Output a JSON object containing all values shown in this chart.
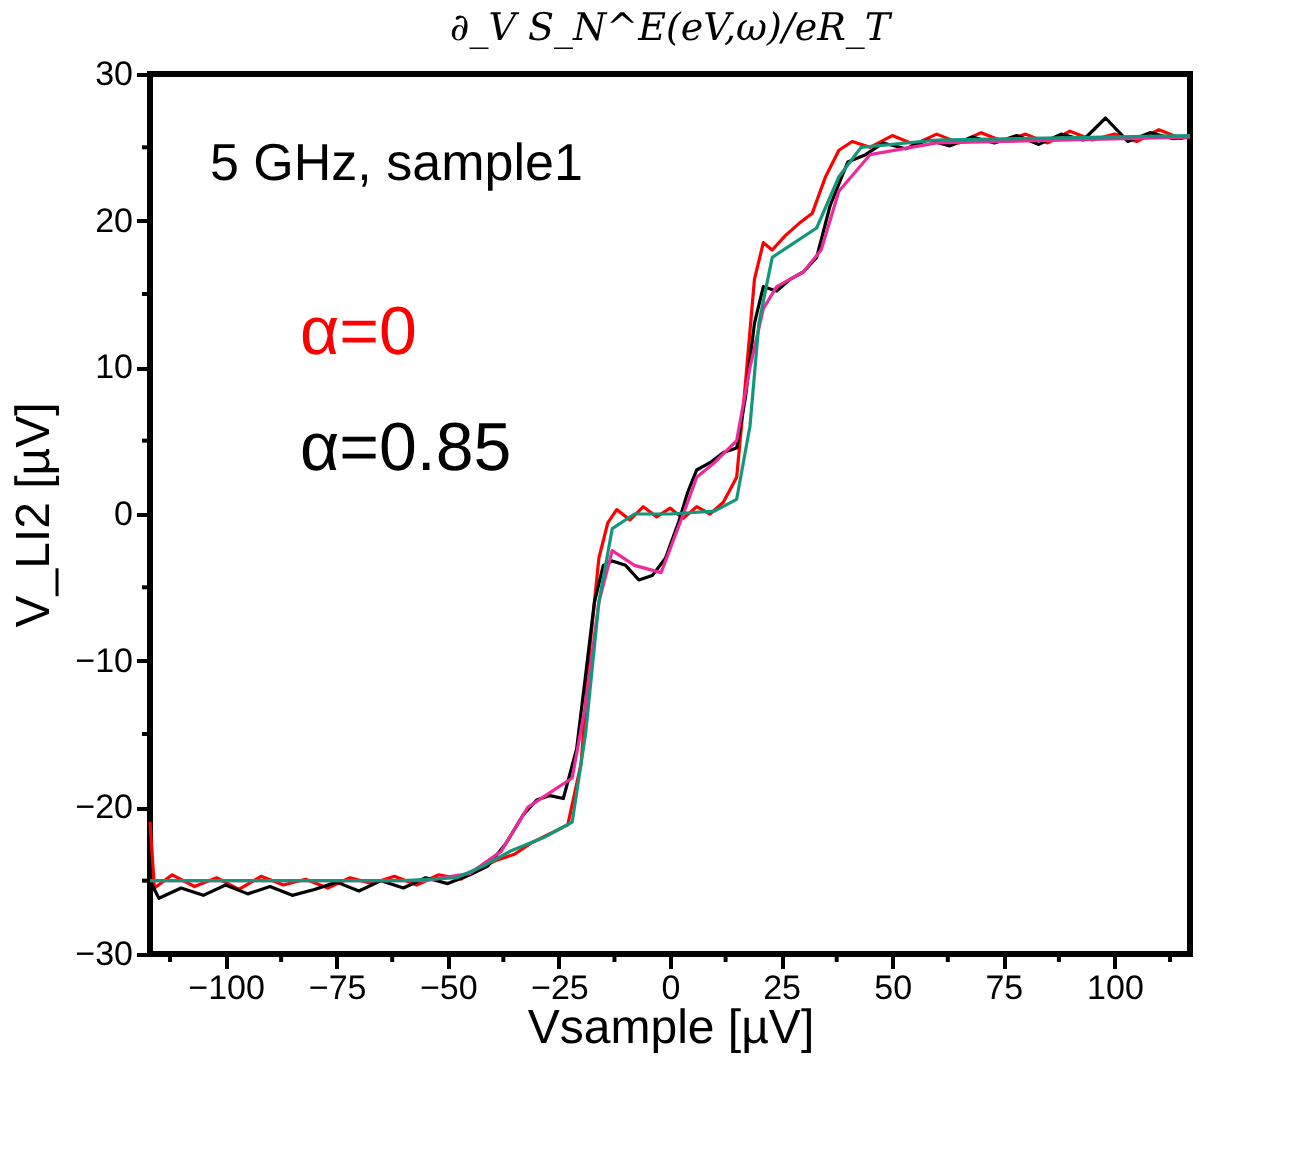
{
  "chart_data": {
    "type": "line",
    "title": "∂_V S_N^E(eV,ω)/eR_T",
    "xlabel": "Vsample [µV]",
    "ylabel": "V_LI2 [µV]",
    "annotations": [
      "5 GHz, sample1"
    ],
    "legend": "top left",
    "grid": false,
    "marker": "none",
    "line_style": "solid",
    "xlim": [
      -117,
      117
    ],
    "ylim": [
      -30,
      30
    ],
    "xticks": [
      {
        "value": -112.5,
        "label": null
      },
      -100,
      {
        "value": -87.5,
        "label": null
      },
      -75,
      {
        "value": -62.5,
        "label": null
      },
      -50,
      {
        "value": -37.5,
        "label": null
      },
      -25,
      {
        "value": -12.5,
        "label": null
      },
      0,
      {
        "value": 12.5,
        "label": null
      },
      25,
      {
        "value": 37.5,
        "label": null
      },
      50,
      {
        "value": 62.5,
        "label": null
      },
      75,
      {
        "value": 87.5,
        "label": null
      },
      100,
      {
        "value": 112.5,
        "label": null
      }
    ],
    "yticks": [
      -30,
      {
        "value": -25,
        "label": null
      },
      -20,
      {
        "value": -15,
        "label": null
      },
      -10,
      {
        "value": -5,
        "label": null
      },
      0,
      {
        "value": 5,
        "label": null
      },
      10,
      {
        "value": 15,
        "label": null
      },
      20,
      {
        "value": 25,
        "label": null
      },
      30
    ],
    "series": [
      {
        "name": "α=0",
        "color": "#ff0000",
        "x": [
          -117,
          -116,
          -112,
          -107,
          -102,
          -97,
          -92,
          -87,
          -82,
          -77,
          -72,
          -67,
          -62,
          -57,
          -52,
          -47,
          -43,
          -39,
          -35,
          -31,
          -27,
          -23,
          -20,
          -18,
          -16,
          -14,
          -12,
          -9,
          -6,
          -3,
          0,
          3,
          6,
          9,
          12,
          15,
          17,
          19,
          21,
          23,
          26,
          29,
          32,
          35,
          38,
          41,
          45,
          50,
          55,
          60,
          65,
          70,
          75,
          80,
          85,
          90,
          95,
          100,
          105,
          110,
          115,
          117
        ],
        "values": [
          -21,
          -25.5,
          -24.6,
          -25.4,
          -24.8,
          -25.6,
          -24.7,
          -25.3,
          -24.9,
          -25.5,
          -24.8,
          -25.2,
          -24.7,
          -25.3,
          -24.6,
          -24.9,
          -24.2,
          -23.6,
          -23.2,
          -22.4,
          -21.8,
          -21.2,
          -17,
          -9,
          -3,
          -0.6,
          0.3,
          -0.4,
          0.5,
          -0.2,
          0.4,
          -0.3,
          0.5,
          0,
          0.8,
          2.5,
          9,
          16,
          18.5,
          18,
          19,
          19.8,
          20.5,
          23,
          24.8,
          25.4,
          25,
          25.8,
          25.2,
          25.9,
          25.3,
          26,
          25.4,
          25.9,
          25.3,
          26.1,
          25.5,
          25.9,
          25.4,
          26.2,
          25.6,
          25.8
        ]
      },
      {
        "name": "α=0.85",
        "color": "#000000",
        "x": [
          -117,
          -115,
          -110,
          -105,
          -100,
          -95,
          -90,
          -85,
          -80,
          -75,
          -70,
          -65,
          -60,
          -55,
          -50,
          -45,
          -41,
          -37,
          -33,
          -30,
          -27,
          -24,
          -21,
          -19,
          -17,
          -15,
          -13,
          -10,
          -7,
          -4,
          -1,
          2,
          4,
          6,
          9,
          12,
          15,
          17,
          19,
          21,
          24,
          27,
          30,
          33,
          36,
          40,
          44,
          48,
          53,
          58,
          63,
          68,
          73,
          78,
          83,
          88,
          93,
          98,
          103,
          108,
          113,
          117
        ],
        "values": [
          -25,
          -26.2,
          -25.5,
          -26,
          -25.3,
          -25.9,
          -25.4,
          -26,
          -25.6,
          -25.1,
          -25.7,
          -25,
          -25.5,
          -24.8,
          -25.2,
          -24.6,
          -24,
          -22.5,
          -20.5,
          -19.5,
          -19.2,
          -19.4,
          -16,
          -11,
          -6,
          -3.5,
          -3.2,
          -3.5,
          -4.5,
          -4.2,
          -3,
          -0.5,
          1.5,
          3,
          3.5,
          4.2,
          4.5,
          8,
          13,
          15.5,
          15.2,
          16,
          16.5,
          17.5,
          21,
          24,
          24.5,
          25.3,
          24.9,
          25.5,
          25.1,
          25.7,
          25.3,
          25.8,
          25.2,
          25.9,
          25.5,
          27,
          25.4,
          26,
          25.6,
          25.7
        ]
      },
      {
        "color": "#ee2a9a",
        "x": [
          -117,
          -55,
          -45,
          -38,
          -32,
          -27,
          -22,
          -19,
          -16,
          -13,
          -8,
          -2,
          3,
          6,
          10,
          15,
          18,
          21,
          24,
          30,
          34,
          38,
          45,
          60,
          117
        ],
        "values": [
          -25,
          -25,
          -24.5,
          -23,
          -20,
          -19,
          -18,
          -13,
          -6,
          -2.5,
          -3.5,
          -4,
          0,
          2.5,
          3.5,
          5,
          10,
          14,
          15.5,
          16.5,
          18,
          22,
          24.5,
          25.3,
          25.7
        ]
      },
      {
        "color": "#13977a",
        "x": [
          -117,
          -60,
          -48,
          -42,
          -36,
          -28,
          -22,
          -19,
          -16,
          -13,
          -8,
          0,
          10,
          15,
          18,
          20,
          23,
          28,
          33,
          38,
          43,
          60,
          117
        ],
        "values": [
          -25,
          -25,
          -24.8,
          -24,
          -23,
          -22,
          -21,
          -15,
          -6,
          -1,
          0,
          0,
          0.2,
          1,
          6,
          13,
          17.5,
          18.5,
          19.5,
          23,
          25,
          25.5,
          25.8
        ]
      }
    ]
  }
}
